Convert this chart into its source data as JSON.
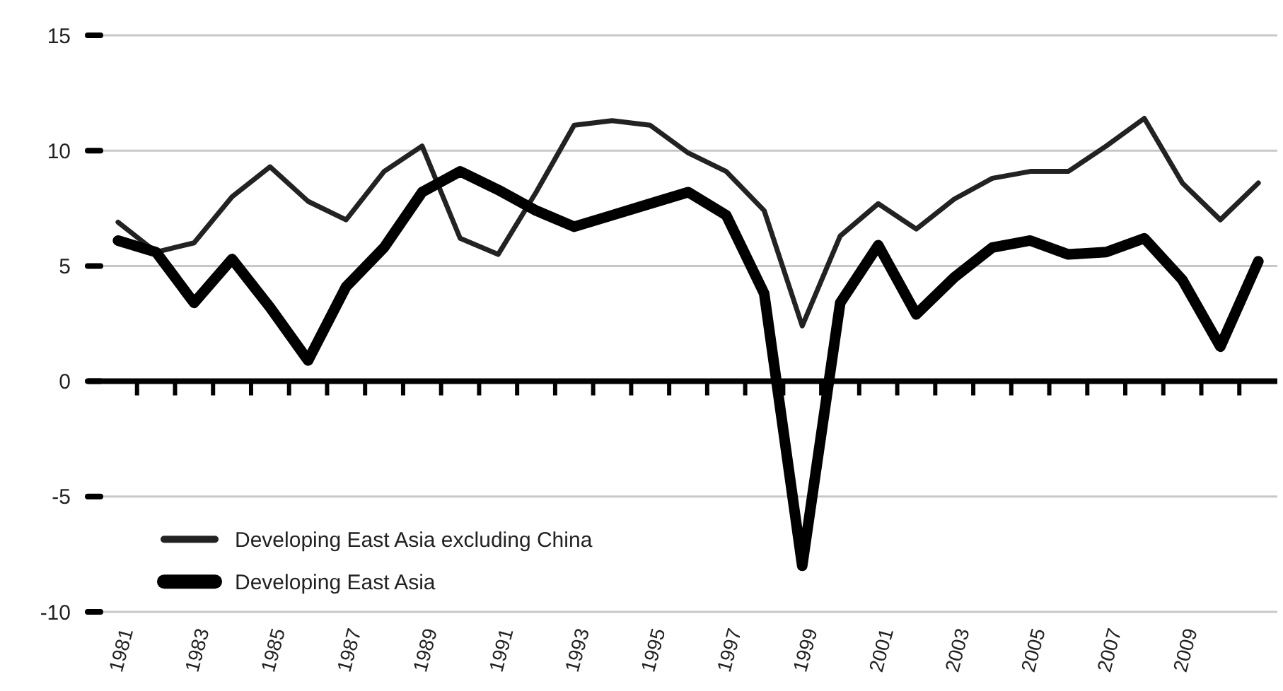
{
  "chart_data": {
    "type": "line",
    "categories": [
      "1981",
      null,
      "1983",
      null,
      "1985",
      null,
      "1987",
      null,
      "1989",
      null,
      "1991",
      null,
      "1993",
      null,
      "1995",
      null,
      "1997",
      null,
      "1999",
      null,
      "2001",
      null,
      "2003",
      null,
      "2005",
      null,
      "2007",
      null,
      "2009",
      null,
      null
    ],
    "series": [
      {
        "name": "Developing East Asia excluding China",
        "color": "#222222",
        "values": [
          6.9,
          5.6,
          6.0,
          8.0,
          9.3,
          7.8,
          7.0,
          9.1,
          10.2,
          6.2,
          5.5,
          8.2,
          11.1,
          11.3,
          11.1,
          9.9,
          9.1,
          7.4,
          2.4,
          6.3,
          7.7,
          6.6,
          7.9,
          8.8,
          9.1,
          9.1,
          10.2,
          11.4,
          8.6,
          7.0,
          8.6
        ]
      },
      {
        "name": "Developing East Asia",
        "color": "#000000",
        "values": [
          6.1,
          5.6,
          3.4,
          5.3,
          3.2,
          0.9,
          4.1,
          5.8,
          8.2,
          9.1,
          8.3,
          7.4,
          6.7,
          7.2,
          7.7,
          8.2,
          7.2,
          3.8,
          -8.0,
          3.4,
          5.9,
          2.9,
          4.5,
          5.8,
          6.1,
          5.5,
          5.6,
          6.2,
          4.4,
          1.5,
          5.2
        ]
      }
    ],
    "ylim": [
      -10,
      15
    ],
    "yticks": [
      -10,
      -5,
      0,
      5,
      10,
      15
    ],
    "grid": "y",
    "legend": "bottom left",
    "marker": "none",
    "line_style": "solid"
  }
}
